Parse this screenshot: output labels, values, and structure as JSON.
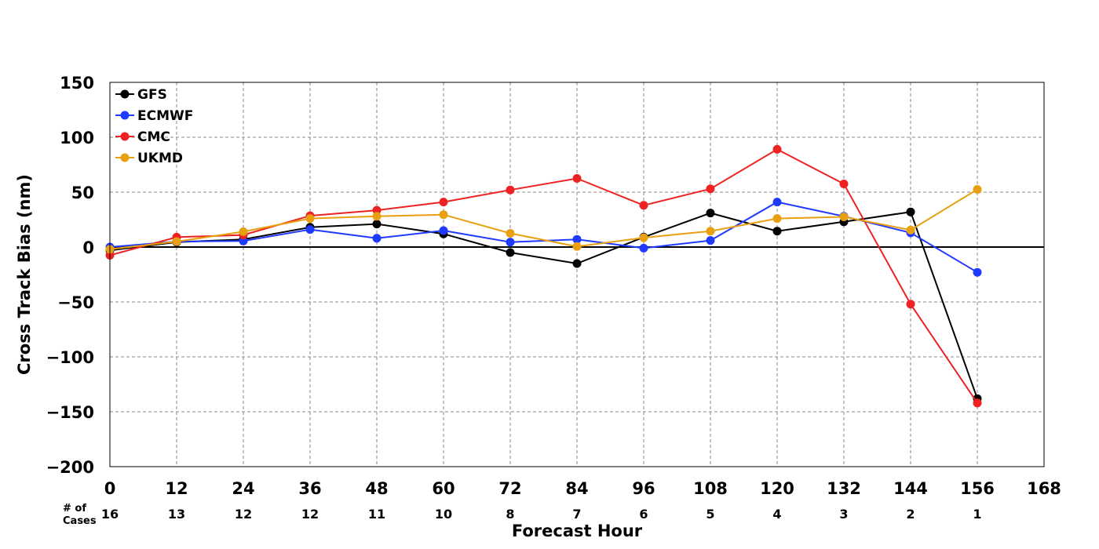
{
  "chart_data": {
    "type": "line",
    "xlabel": "Forecast Hour",
    "ylabel": "Cross Track Bias (nm)",
    "xlim": [
      0,
      168
    ],
    "ylim": [
      -200,
      150
    ],
    "xticks": [
      0,
      12,
      24,
      36,
      48,
      60,
      72,
      84,
      96,
      108,
      120,
      132,
      144,
      156,
      168
    ],
    "yticks": [
      -200,
      -150,
      -100,
      -50,
      0,
      50,
      100,
      150
    ],
    "ytick_labels": [
      "−200",
      "−150",
      "−100",
      "−50",
      "0",
      "50",
      "100",
      "150"
    ],
    "grid": true,
    "legend_position": "top-left",
    "cases_label_line1": "# of",
    "cases_label_line2": "Cases",
    "cases": [
      {
        "x": 0,
        "n": "16"
      },
      {
        "x": 12,
        "n": "13"
      },
      {
        "x": 24,
        "n": "12"
      },
      {
        "x": 36,
        "n": "12"
      },
      {
        "x": 48,
        "n": "11"
      },
      {
        "x": 60,
        "n": "10"
      },
      {
        "x": 72,
        "n": "8"
      },
      {
        "x": 84,
        "n": "7"
      },
      {
        "x": 96,
        "n": "6"
      },
      {
        "x": 108,
        "n": "5"
      },
      {
        "x": 120,
        "n": "4"
      },
      {
        "x": 132,
        "n": "3"
      },
      {
        "x": 144,
        "n": "2"
      },
      {
        "x": 156,
        "n": "1"
      }
    ],
    "x": [
      0,
      12,
      24,
      36,
      48,
      60,
      72,
      84,
      96,
      108,
      120,
      132,
      144,
      156
    ],
    "series": [
      {
        "name": "GFS",
        "color": "#000000",
        "values": [
          -3,
          4.5,
          7,
          18,
          21,
          12,
          -5,
          -15,
          9,
          31,
          14.5,
          23,
          32,
          -138
        ]
      },
      {
        "name": "ECMWF",
        "color": "#1f3aff",
        "values": [
          0,
          5,
          5.5,
          16,
          8,
          15,
          4.5,
          7,
          -1,
          6,
          41,
          28,
          13,
          -23
        ]
      },
      {
        "name": "CMC",
        "color": "#ee2222",
        "values": [
          -7.5,
          9,
          11,
          28.5,
          33.5,
          41,
          52,
          62.5,
          38,
          53,
          89,
          57.5,
          -52,
          -142
        ]
      },
      {
        "name": "UKMD",
        "color": "#e8a010",
        "values": [
          -2,
          5,
          14,
          26,
          28,
          29.5,
          12.5,
          0.5,
          8.5,
          14.5,
          26,
          27.5,
          15.5,
          52.5
        ]
      }
    ]
  }
}
